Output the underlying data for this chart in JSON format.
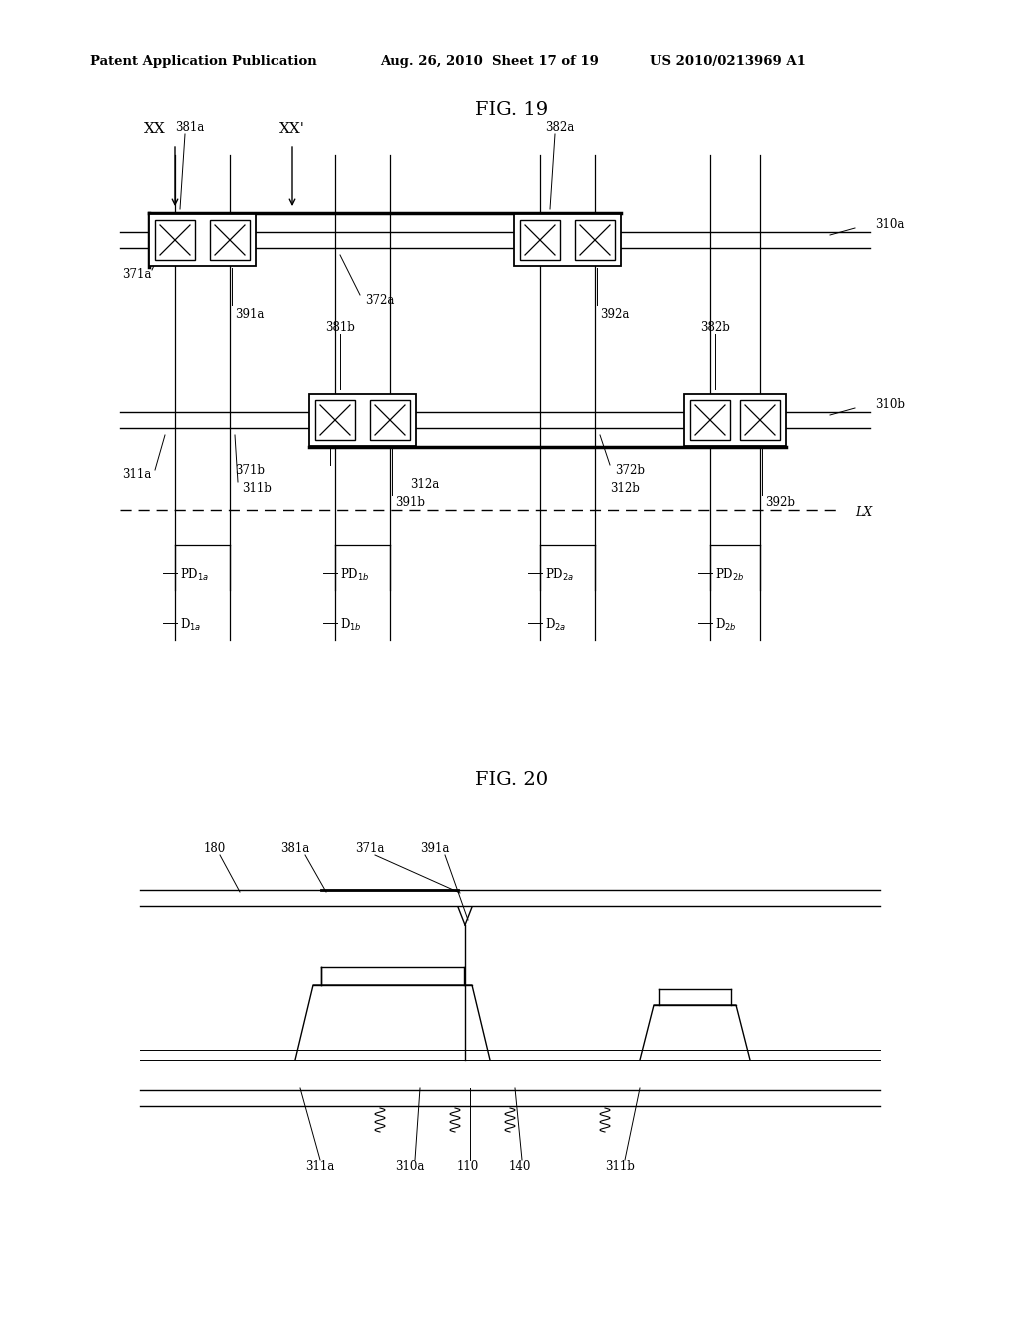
{
  "bg_color": "#ffffff",
  "header_left": "Patent Application Publication",
  "header_mid": "Aug. 26, 2010  Sheet 17 of 19",
  "header_right": "US 2010/0213969 A1",
  "fig19_title": "FIG. 19",
  "fig20_title": "FIG. 20"
}
